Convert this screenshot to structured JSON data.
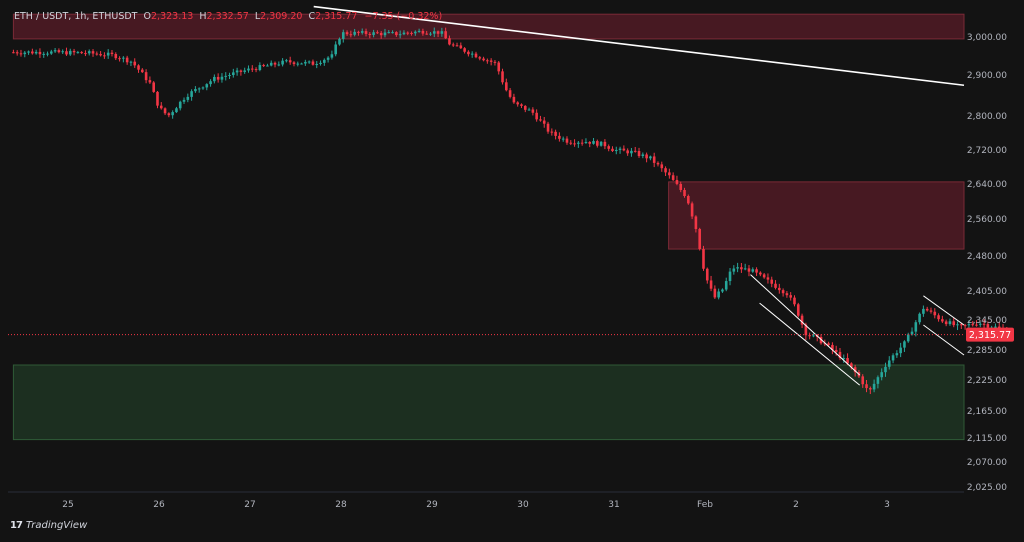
{
  "legend": {
    "symbol": "ETH / USDT, 1h, ETHUSDT",
    "open_label": "O",
    "open": "2,323.13",
    "high_label": "H",
    "high": "2,332.57",
    "low_label": "L",
    "low": "2,309.20",
    "close_label": "C",
    "close": "2,315.77",
    "change": "−7.35 (−0.32%)"
  },
  "brand": {
    "name": "TradingView",
    "logo_text": "17"
  },
  "colors": {
    "background": "#131313",
    "up_candle": "#26a69a",
    "down_candle": "#f23645",
    "supply_zone": "#5a1c28",
    "demand_zone": "#1e3322",
    "trendline": "#ffffff",
    "last_price_tag": "#f23645"
  },
  "chart_data": {
    "type": "candlestick",
    "instrument": "ETH / USDT",
    "timeframe": "1h",
    "last_price": "2,315.77",
    "x_ticks": [
      "25",
      "26",
      "27",
      "28",
      "29",
      "30",
      "31",
      "Feb",
      "2",
      "3"
    ],
    "y_ticks": [
      "3,000.00",
      "2,900.00",
      "2,800.00",
      "2,720.00",
      "2,640.00",
      "2,560.00",
      "2,480.00",
      "2,405.00",
      "2,345.00",
      "2,285.00",
      "2,225.00",
      "2,165.00",
      "2,115.00",
      "2,070.00",
      "2,025.00"
    ],
    "close_path": [
      [
        24.4,
        2960
      ],
      [
        24.8,
        2960
      ],
      [
        25.2,
        2958
      ],
      [
        25.5,
        2952
      ],
      [
        25.7,
        2935
      ],
      [
        25.9,
        2880
      ],
      [
        26.0,
        2820
      ],
      [
        26.1,
        2800
      ],
      [
        26.3,
        2850
      ],
      [
        26.6,
        2890
      ],
      [
        27.0,
        2915
      ],
      [
        27.4,
        2935
      ],
      [
        27.7,
        2930
      ],
      [
        27.9,
        2950
      ],
      [
        28.0,
        3010
      ],
      [
        28.3,
        3010
      ],
      [
        28.6,
        3008
      ],
      [
        28.9,
        3015
      ],
      [
        29.1,
        3012
      ],
      [
        29.2,
        2980
      ],
      [
        29.5,
        2950
      ],
      [
        29.7,
        2930
      ],
      [
        29.8,
        2870
      ],
      [
        29.9,
        2830
      ],
      [
        30.1,
        2810
      ],
      [
        30.3,
        2760
      ],
      [
        30.5,
        2740
      ],
      [
        30.7,
        2740
      ],
      [
        30.9,
        2732
      ],
      [
        31.0,
        2720
      ],
      [
        31.2,
        2715
      ],
      [
        31.4,
        2700
      ],
      [
        31.6,
        2660
      ],
      [
        31.8,
        2610
      ],
      [
        31.9,
        2540
      ],
      [
        32.0,
        2440
      ],
      [
        32.1,
        2390
      ],
      [
        32.2,
        2410
      ],
      [
        32.3,
        2455
      ],
      [
        32.5,
        2450
      ],
      [
        32.7,
        2425
      ],
      [
        32.9,
        2400
      ],
      [
        33.0,
        2370
      ],
      [
        33.1,
        2320
      ],
      [
        33.3,
        2300
      ],
      [
        33.5,
        2270
      ],
      [
        33.7,
        2230
      ],
      [
        33.8,
        2200
      ],
      [
        33.9,
        2230
      ],
      [
        34.0,
        2260
      ],
      [
        34.2,
        2300
      ],
      [
        34.4,
        2370
      ],
      [
        34.6,
        2345
      ],
      [
        34.8,
        2330
      ],
      [
        35.0,
        2340
      ],
      [
        35.2,
        2330
      ],
      [
        35.35,
        2316
      ]
    ],
    "supply_zones": [
      {
        "t0": 24.4,
        "t1": 35.8,
        "low": 2995,
        "high": 3060
      },
      {
        "t0": 31.6,
        "t1": 35.8,
        "low": 2495,
        "high": 2645
      }
    ],
    "demand_zone": {
      "t0": 24.4,
      "t1": 35.8,
      "low": 2112,
      "high": 2255
    },
    "trendlines": [
      {
        "name": "long-downtrend",
        "points": [
          [
            27.7,
            3080
          ],
          [
            35.8,
            2875
          ]
        ]
      },
      {
        "name": "descending-upper",
        "points": [
          [
            32.5,
            2440
          ],
          [
            33.7,
            2235
          ]
        ]
      },
      {
        "name": "descending-lower",
        "points": [
          [
            32.6,
            2380
          ],
          [
            33.7,
            2215
          ]
        ]
      },
      {
        "name": "flag-upper",
        "points": [
          [
            34.4,
            2395
          ],
          [
            35.6,
            2335
          ]
        ]
      },
      {
        "name": "flag-lower",
        "points": [
          [
            34.4,
            2335
          ],
          [
            35.6,
            2275
          ]
        ]
      }
    ]
  }
}
